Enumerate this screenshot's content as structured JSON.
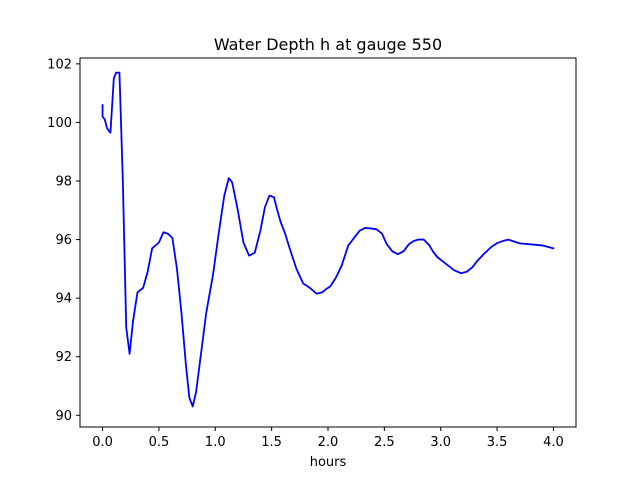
{
  "chart_data": {
    "type": "line",
    "title": "Water Depth h at gauge 550",
    "xlabel": "hours",
    "ylabel": "",
    "xlim": [
      -0.2,
      4.2
    ],
    "ylim": [
      89.6,
      102.2
    ],
    "xticks": [
      0.0,
      0.5,
      1.0,
      1.5,
      2.0,
      2.5,
      3.0,
      3.5,
      4.0
    ],
    "xtick_labels": [
      "0.0",
      "0.5",
      "1.0",
      "1.5",
      "2.0",
      "2.5",
      "3.0",
      "3.5",
      "4.0"
    ],
    "yticks": [
      90,
      92,
      94,
      96,
      98,
      100,
      102
    ],
    "ytick_labels": [
      "90",
      "92",
      "94",
      "96",
      "98",
      "100",
      "102"
    ],
    "grid": false,
    "series": [
      {
        "name": "h",
        "color": "#0000ff",
        "x": [
          0.0,
          0.0,
          0.02,
          0.04,
          0.07,
          0.1,
          0.12,
          0.15,
          0.18,
          0.21,
          0.24,
          0.27,
          0.31,
          0.36,
          0.4,
          0.44,
          0.5,
          0.54,
          0.58,
          0.62,
          0.66,
          0.7,
          0.74,
          0.77,
          0.8,
          0.83,
          0.87,
          0.92,
          0.98,
          1.03,
          1.08,
          1.12,
          1.15,
          1.2,
          1.25,
          1.3,
          1.35,
          1.4,
          1.44,
          1.48,
          1.52,
          1.55,
          1.58,
          1.62,
          1.66,
          1.72,
          1.78,
          1.84,
          1.9,
          1.95,
          1.98,
          2.02,
          2.07,
          2.12,
          2.18,
          2.23,
          2.28,
          2.33,
          2.38,
          2.43,
          2.48,
          2.52,
          2.57,
          2.62,
          2.67,
          2.72,
          2.76,
          2.8,
          2.85,
          2.9,
          2.93,
          2.97,
          3.02,
          3.07,
          3.12,
          3.18,
          3.23,
          3.28,
          3.32,
          3.38,
          3.45,
          3.5,
          3.55,
          3.6,
          3.66,
          3.7,
          3.76,
          3.82,
          3.9,
          3.95,
          4.0
        ],
        "y": [
          100.6,
          100.2,
          100.1,
          99.8,
          99.65,
          101.5,
          101.7,
          101.7,
          98.0,
          93.0,
          92.1,
          93.2,
          94.2,
          94.35,
          94.9,
          95.7,
          95.9,
          96.25,
          96.2,
          96.05,
          95.0,
          93.5,
          91.7,
          90.6,
          90.3,
          90.8,
          92.0,
          93.5,
          94.8,
          96.2,
          97.5,
          98.1,
          97.95,
          97.0,
          95.9,
          95.45,
          95.55,
          96.3,
          97.1,
          97.5,
          97.45,
          97.0,
          96.6,
          96.2,
          95.7,
          95.0,
          94.5,
          94.35,
          94.15,
          94.2,
          94.3,
          94.4,
          94.7,
          95.1,
          95.8,
          96.05,
          96.3,
          96.4,
          96.38,
          96.35,
          96.2,
          95.85,
          95.6,
          95.5,
          95.6,
          95.85,
          95.95,
          96.0,
          96.0,
          95.8,
          95.6,
          95.4,
          95.25,
          95.1,
          94.95,
          94.85,
          94.9,
          95.05,
          95.25,
          95.5,
          95.75,
          95.88,
          95.95,
          96.0,
          95.92,
          95.87,
          95.85,
          95.83,
          95.8,
          95.75,
          95.7
        ]
      }
    ]
  }
}
